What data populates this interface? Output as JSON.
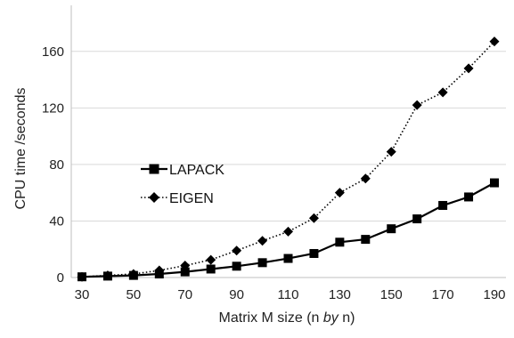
{
  "chart_data": {
    "type": "line",
    "xlabel_parts": [
      "Matrix M size (n ",
      "by",
      " n)"
    ],
    "ylabel": "CPU time /seconds",
    "x": [
      30,
      40,
      50,
      60,
      70,
      80,
      90,
      100,
      110,
      120,
      130,
      140,
      150,
      160,
      170,
      180,
      190
    ],
    "xticks": [
      30,
      50,
      70,
      90,
      110,
      130,
      150,
      170,
      190
    ],
    "yticks": [
      0,
      40,
      80,
      120,
      160
    ],
    "xlim": [
      30,
      190
    ],
    "ylim": [
      0,
      180
    ],
    "grid": "horizontal",
    "legend_position": "center-left",
    "series": [
      {
        "name": "LAPACK",
        "marker": "square",
        "line": "solid",
        "values": [
          0.5,
          1,
          1.5,
          2.5,
          4,
          6,
          8,
          10.5,
          13.5,
          17,
          25,
          27,
          34.5,
          41.5,
          51,
          57,
          67
        ]
      },
      {
        "name": "EIGEN",
        "marker": "diamond",
        "line": "dotted",
        "values": [
          0.5,
          1.5,
          2.5,
          5,
          8.5,
          12.5,
          19,
          26,
          32.5,
          42,
          60,
          70,
          89,
          122,
          131,
          148,
          167
        ]
      }
    ],
    "colors": {
      "series": "#000000",
      "grid": "#d9d9d9",
      "axis": "#bfbfbf"
    }
  }
}
